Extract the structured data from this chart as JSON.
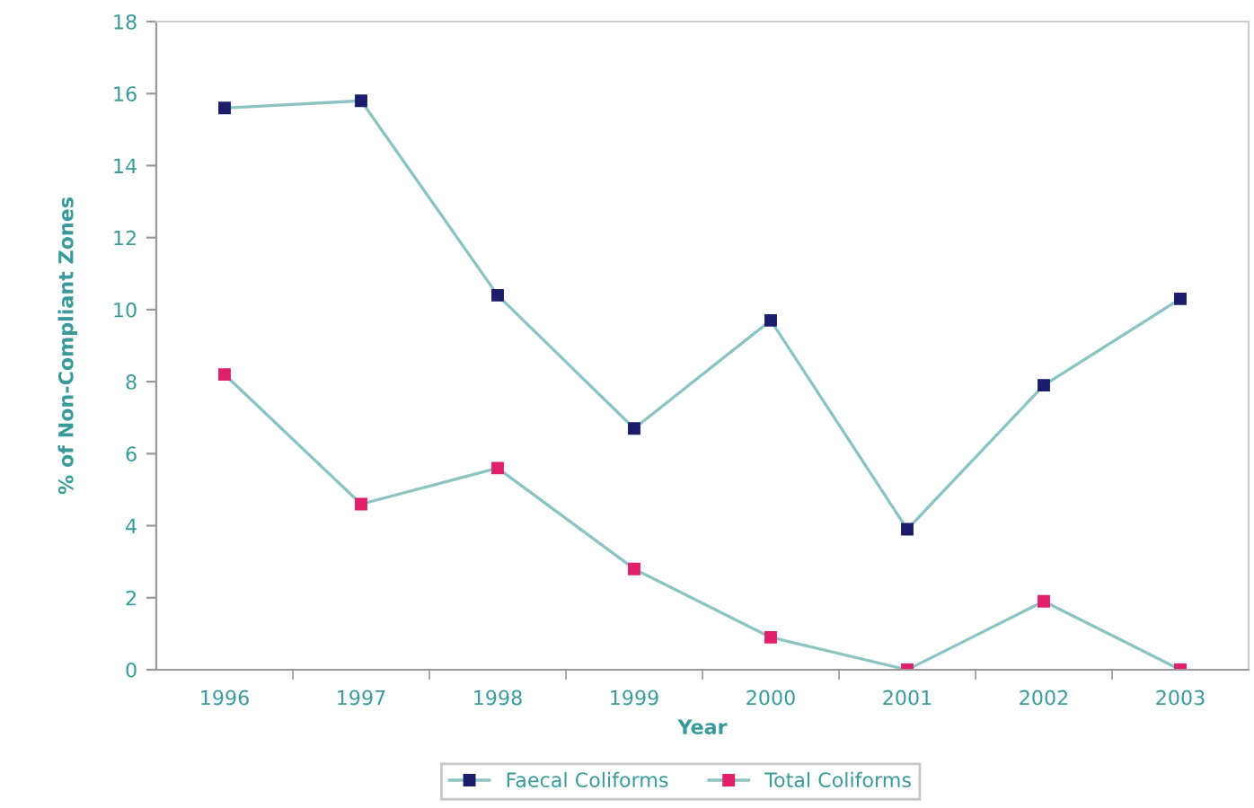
{
  "chart_data": {
    "type": "line",
    "xlabel": "Year",
    "ylabel": "% of Non-Compliant Zones",
    "categories": [
      "1996",
      "1997",
      "1998",
      "1999",
      "2000",
      "2001",
      "2002",
      "2003"
    ],
    "series": [
      {
        "name": "Faecal Coliforms",
        "color": "#1c1c6c",
        "values": [
          15.6,
          15.8,
          10.4,
          6.7,
          9.7,
          3.9,
          7.9,
          10.3
        ]
      },
      {
        "name": "Total Coliforms",
        "color": "#e0206a",
        "values": [
          8.2,
          4.6,
          5.6,
          2.8,
          0.9,
          0,
          1.9,
          0
        ]
      }
    ],
    "ylim": [
      0,
      18
    ],
    "yticks": [
      0,
      2,
      4,
      6,
      8,
      10,
      12,
      14,
      16,
      18
    ],
    "grid": false,
    "legend": "bottom",
    "marker": "square",
    "line_style": "solid"
  }
}
